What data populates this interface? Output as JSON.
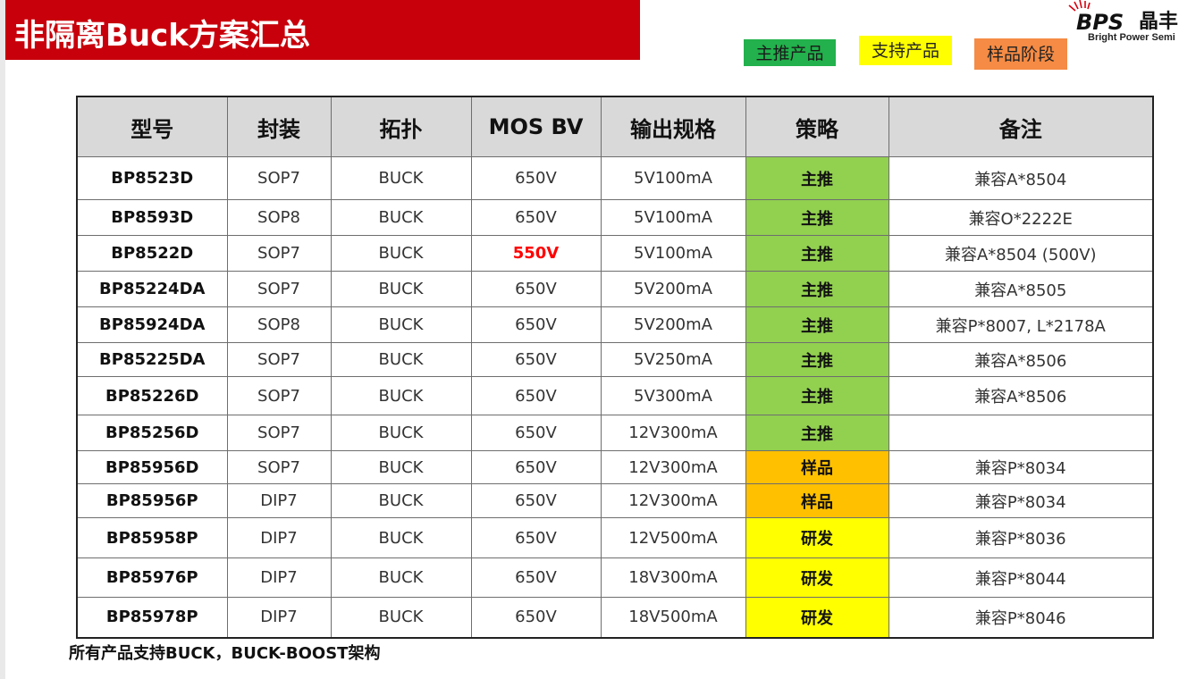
{
  "title": "非隔离Buck方案汇总",
  "legend": {
    "main": "主推产品",
    "support": "支持产品",
    "sample": "样品阶段",
    "colors": {
      "main": "#22b14c",
      "support": "#ffff00",
      "sample": "#f58b44"
    }
  },
  "logo": {
    "brand": "BPS",
    "cn": "晶丰",
    "en": "Bright Power Semi"
  },
  "table": {
    "headers": [
      "型号",
      "封装",
      "拓扑",
      "MOS BV",
      "输出规格",
      "策略",
      "备注"
    ],
    "rows": [
      [
        "BP8523D",
        "SOP7",
        "BUCK",
        "650V",
        "5V100mA",
        "主推",
        "兼容A*8504"
      ],
      [
        "BP8593D",
        "SOP8",
        "BUCK",
        "650V",
        "5V100mA",
        "主推",
        "兼容O*2222E"
      ],
      [
        "BP8522D",
        "SOP7",
        "BUCK",
        "550V",
        "5V100mA",
        "主推",
        "兼容A*8504 (500V)"
      ],
      [
        "BP85224DA",
        "SOP7",
        "BUCK",
        "650V",
        "5V200mA",
        "主推",
        "兼容A*8505"
      ],
      [
        "BP85924DA",
        "SOP8",
        "BUCK",
        "650V",
        "5V200mA",
        "主推",
        "兼容P*8007, L*2178A"
      ],
      [
        "BP85225DA",
        "SOP7",
        "BUCK",
        "650V",
        "5V250mA",
        "主推",
        "兼容A*8506"
      ],
      [
        "BP85226D",
        "SOP7",
        "BUCK",
        "650V",
        "5V300mA",
        "主推",
        "兼容A*8506"
      ],
      [
        "BP85256D",
        "SOP7",
        "BUCK",
        "650V",
        "12V300mA",
        "主推",
        ""
      ],
      [
        "BP85956D",
        "SOP7",
        "BUCK",
        "650V",
        "12V300mA",
        "样品",
        "兼容P*8034"
      ],
      [
        "BP85956P",
        "DIP7",
        "BUCK",
        "650V",
        "12V300mA",
        "样品",
        "兼容P*8034"
      ],
      [
        "BP85958P",
        "DIP7",
        "BUCK",
        "650V",
        "12V500mA",
        "研发",
        "兼容P*8036"
      ],
      [
        "BP85976P",
        "DIP7",
        "BUCK",
        "650V",
        "18V300mA",
        "研发",
        "兼容P*8044"
      ],
      [
        "BP85978P",
        "DIP7",
        "BUCK",
        "650V",
        "18V500mA",
        "研发",
        "兼容P*8046"
      ]
    ],
    "strategy_colors": {
      "主推": "#92d050",
      "样品": "#ffc000",
      "研发": "#ffff00"
    },
    "highlight": {
      "row": 2,
      "col": 3,
      "color": "#ff0000"
    }
  },
  "footnote": "所有产品支持BUCK，BUCK-BOOST架构"
}
